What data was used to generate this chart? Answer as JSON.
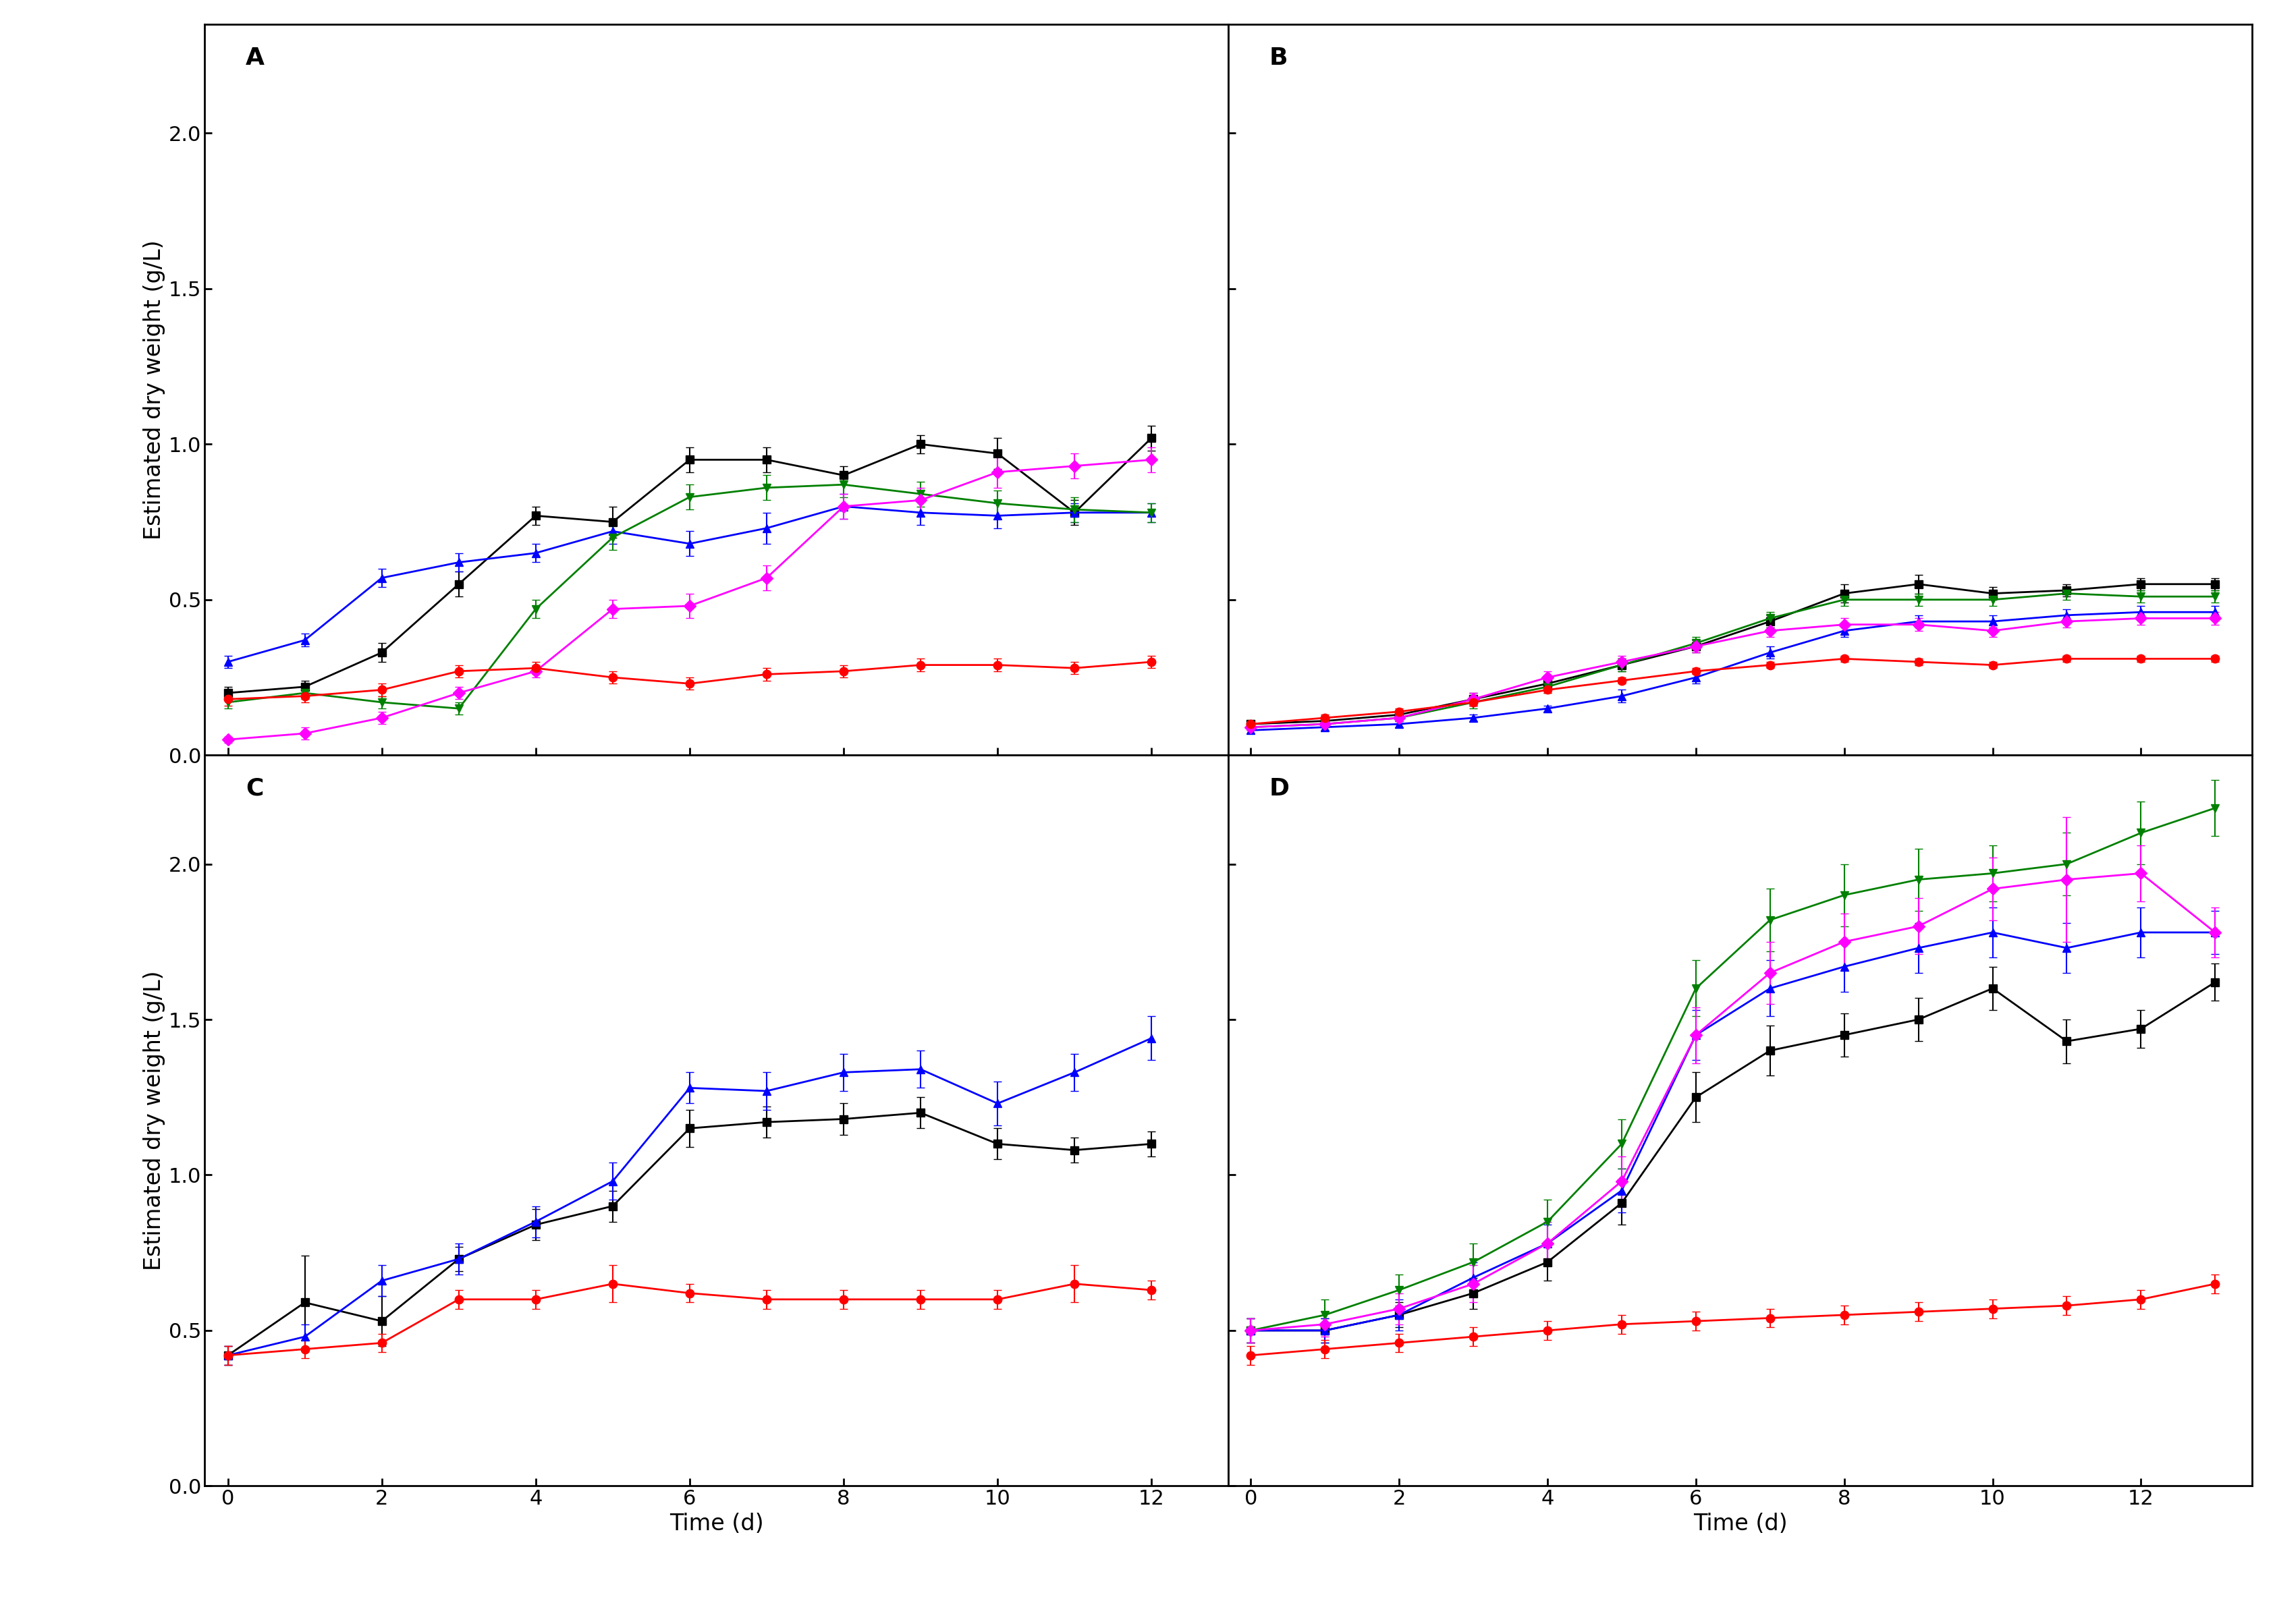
{
  "colors": {
    "black": "#000000",
    "blue": "#0000FF",
    "green": "#008000",
    "magenta": "#FF00FF",
    "red": "#FF0000"
  },
  "A": {
    "time": [
      0,
      1,
      2,
      3,
      4,
      5,
      6,
      7,
      8,
      9,
      10,
      11,
      12
    ],
    "black_sq": [
      0.2,
      0.22,
      0.33,
      0.55,
      0.77,
      0.75,
      0.95,
      0.95,
      0.9,
      1.0,
      0.97,
      0.78,
      1.02
    ],
    "black_sq_err": [
      0.02,
      0.02,
      0.03,
      0.04,
      0.03,
      0.05,
      0.04,
      0.04,
      0.03,
      0.03,
      0.05,
      0.04,
      0.04
    ],
    "blue_tri": [
      0.3,
      0.37,
      0.57,
      0.62,
      0.65,
      0.72,
      0.68,
      0.73,
      0.8,
      0.78,
      0.77,
      0.78,
      0.78
    ],
    "blue_tri_err": [
      0.02,
      0.02,
      0.03,
      0.03,
      0.03,
      0.04,
      0.04,
      0.05,
      0.04,
      0.04,
      0.04,
      0.03,
      0.03
    ],
    "green_tri": [
      0.17,
      0.2,
      0.17,
      0.15,
      0.47,
      0.7,
      0.83,
      0.86,
      0.87,
      0.84,
      0.81,
      0.79,
      0.78
    ],
    "green_tri_err": [
      0.02,
      0.02,
      0.02,
      0.02,
      0.03,
      0.04,
      0.04,
      0.04,
      0.04,
      0.04,
      0.04,
      0.04,
      0.03
    ],
    "magenta_dia": [
      0.05,
      0.07,
      0.12,
      0.2,
      0.27,
      0.47,
      0.48,
      0.57,
      0.8,
      0.82,
      0.91,
      0.93,
      0.95
    ],
    "magenta_dia_err": [
      0.01,
      0.02,
      0.02,
      0.02,
      0.02,
      0.03,
      0.04,
      0.04,
      0.04,
      0.04,
      0.05,
      0.04,
      0.04
    ],
    "red_cir": [
      0.18,
      0.19,
      0.21,
      0.27,
      0.28,
      0.25,
      0.23,
      0.26,
      0.27,
      0.29,
      0.29,
      0.28,
      0.3
    ],
    "red_cir_err": [
      0.02,
      0.02,
      0.02,
      0.02,
      0.02,
      0.02,
      0.02,
      0.02,
      0.02,
      0.02,
      0.02,
      0.02,
      0.02
    ]
  },
  "B": {
    "time": [
      0,
      1,
      2,
      3,
      4,
      5,
      6,
      7,
      8,
      9,
      10,
      11,
      12,
      13
    ],
    "black_sq": [
      0.1,
      0.11,
      0.13,
      0.18,
      0.23,
      0.29,
      0.35,
      0.43,
      0.52,
      0.55,
      0.52,
      0.53,
      0.55,
      0.55
    ],
    "black_sq_err": [
      0.01,
      0.01,
      0.01,
      0.02,
      0.02,
      0.02,
      0.02,
      0.02,
      0.03,
      0.03,
      0.02,
      0.02,
      0.02,
      0.02
    ],
    "blue_tri": [
      0.08,
      0.09,
      0.1,
      0.12,
      0.15,
      0.19,
      0.25,
      0.33,
      0.4,
      0.43,
      0.43,
      0.45,
      0.46,
      0.46
    ],
    "blue_tri_err": [
      0.01,
      0.01,
      0.01,
      0.01,
      0.01,
      0.02,
      0.02,
      0.02,
      0.02,
      0.02,
      0.02,
      0.02,
      0.02,
      0.02
    ],
    "green_tri": [
      0.09,
      0.1,
      0.12,
      0.17,
      0.22,
      0.29,
      0.36,
      0.44,
      0.5,
      0.5,
      0.5,
      0.52,
      0.51,
      0.51
    ],
    "green_tri_err": [
      0.01,
      0.01,
      0.01,
      0.02,
      0.02,
      0.02,
      0.02,
      0.02,
      0.02,
      0.02,
      0.02,
      0.02,
      0.02,
      0.02
    ],
    "magenta_dia": [
      0.09,
      0.1,
      0.12,
      0.18,
      0.25,
      0.3,
      0.35,
      0.4,
      0.42,
      0.42,
      0.4,
      0.43,
      0.44,
      0.44
    ],
    "magenta_dia_err": [
      0.01,
      0.01,
      0.01,
      0.02,
      0.02,
      0.02,
      0.02,
      0.02,
      0.02,
      0.02,
      0.02,
      0.02,
      0.02,
      0.02
    ],
    "red_cir": [
      0.1,
      0.12,
      0.14,
      0.17,
      0.21,
      0.24,
      0.27,
      0.29,
      0.31,
      0.3,
      0.29,
      0.31,
      0.31,
      0.31
    ],
    "red_cir_err": [
      0.01,
      0.01,
      0.01,
      0.01,
      0.01,
      0.01,
      0.01,
      0.01,
      0.01,
      0.01,
      0.01,
      0.01,
      0.01,
      0.01
    ]
  },
  "C": {
    "time": [
      0,
      1,
      2,
      3,
      4,
      5,
      6,
      7,
      8,
      9,
      10,
      11,
      12
    ],
    "black_sq": [
      0.42,
      0.59,
      0.53,
      0.73,
      0.84,
      0.9,
      1.15,
      1.17,
      1.18,
      1.2,
      1.1,
      1.08,
      1.1
    ],
    "black_sq_err": [
      0.03,
      0.15,
      0.08,
      0.04,
      0.05,
      0.05,
      0.06,
      0.05,
      0.05,
      0.05,
      0.05,
      0.04,
      0.04
    ],
    "blue_tri": [
      0.42,
      0.48,
      0.66,
      0.73,
      0.85,
      0.98,
      1.28,
      1.27,
      1.33,
      1.34,
      1.23,
      1.33,
      1.44
    ],
    "blue_tri_err": [
      0.03,
      0.04,
      0.05,
      0.05,
      0.05,
      0.06,
      0.05,
      0.06,
      0.06,
      0.06,
      0.07,
      0.06,
      0.07
    ],
    "red_cir": [
      0.42,
      0.44,
      0.46,
      0.6,
      0.6,
      0.65,
      0.62,
      0.6,
      0.6,
      0.6,
      0.6,
      0.65,
      0.63
    ],
    "red_cir_err": [
      0.03,
      0.03,
      0.03,
      0.03,
      0.03,
      0.06,
      0.03,
      0.03,
      0.03,
      0.03,
      0.03,
      0.06,
      0.03
    ]
  },
  "D": {
    "time": [
      0,
      1,
      2,
      3,
      4,
      5,
      6,
      7,
      8,
      9,
      10,
      11,
      12,
      13
    ],
    "black_sq": [
      0.5,
      0.5,
      0.55,
      0.62,
      0.72,
      0.91,
      1.25,
      1.4,
      1.45,
      1.5,
      1.6,
      1.43,
      1.47,
      1.62
    ],
    "black_sq_err": [
      0.04,
      0.04,
      0.04,
      0.05,
      0.06,
      0.07,
      0.08,
      0.08,
      0.07,
      0.07,
      0.07,
      0.07,
      0.06,
      0.06
    ],
    "blue_tri": [
      0.5,
      0.5,
      0.55,
      0.67,
      0.78,
      0.95,
      1.45,
      1.6,
      1.67,
      1.73,
      1.78,
      1.73,
      1.78,
      1.78
    ],
    "blue_tri_err": [
      0.04,
      0.04,
      0.05,
      0.05,
      0.06,
      0.07,
      0.08,
      0.09,
      0.08,
      0.08,
      0.08,
      0.08,
      0.08,
      0.07
    ],
    "green_tri": [
      0.5,
      0.55,
      0.63,
      0.72,
      0.85,
      1.1,
      1.6,
      1.82,
      1.9,
      1.95,
      1.97,
      2.0,
      2.1,
      2.18
    ],
    "green_tri_err": [
      0.04,
      0.05,
      0.05,
      0.06,
      0.07,
      0.08,
      0.09,
      0.1,
      0.1,
      0.1,
      0.09,
      0.1,
      0.1,
      0.09
    ],
    "magenta_dia": [
      0.5,
      0.52,
      0.57,
      0.65,
      0.78,
      0.98,
      1.45,
      1.65,
      1.75,
      1.8,
      1.92,
      1.95,
      1.97,
      1.78
    ],
    "magenta_dia_err": [
      0.04,
      0.04,
      0.05,
      0.06,
      0.07,
      0.08,
      0.09,
      0.1,
      0.09,
      0.09,
      0.1,
      0.2,
      0.09,
      0.08
    ],
    "red_cir": [
      0.42,
      0.44,
      0.46,
      0.48,
      0.5,
      0.52,
      0.53,
      0.54,
      0.55,
      0.56,
      0.57,
      0.58,
      0.6,
      0.65
    ],
    "red_cir_err": [
      0.03,
      0.03,
      0.03,
      0.03,
      0.03,
      0.03,
      0.03,
      0.03,
      0.03,
      0.03,
      0.03,
      0.03,
      0.03,
      0.03
    ]
  },
  "xlim_AC": [
    -0.3,
    13
  ],
  "xlim_BD": [
    -0.3,
    13.5
  ],
  "ylim": [
    0.0,
    2.35
  ],
  "yticks": [
    0.0,
    0.5,
    1.0,
    1.5,
    2.0
  ],
  "xticks_AC": [
    0,
    2,
    4,
    6,
    8,
    10,
    12
  ],
  "xticks_BD": [
    0,
    2,
    4,
    6,
    8,
    10,
    12
  ],
  "ylabel": "Estimated dry weight (g/L)",
  "xlabel": "Time (d)",
  "marker_size": 9,
  "line_width": 2.0,
  "cap_size": 4,
  "error_lw": 1.5,
  "tick_labelsize": 22,
  "label_fontsize": 24,
  "panel_fontsize": 26
}
